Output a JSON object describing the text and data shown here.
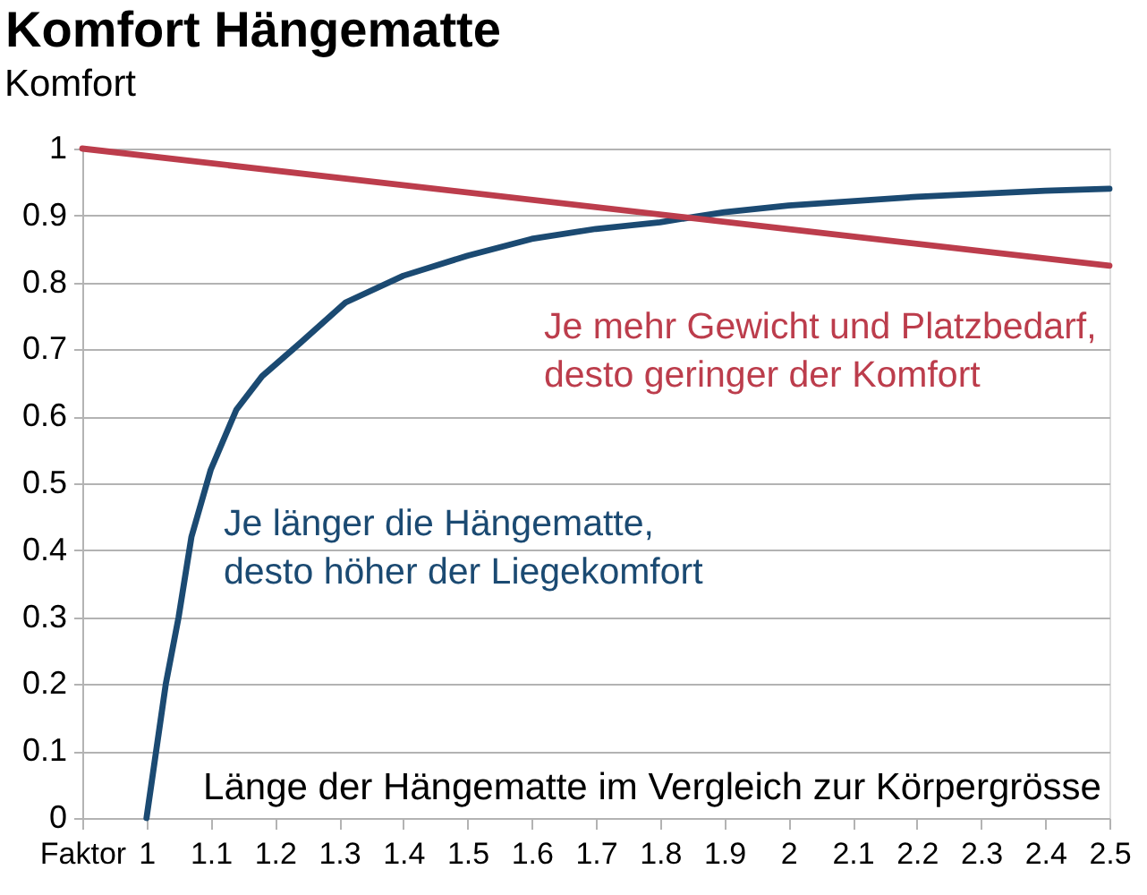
{
  "chart_data": {
    "type": "line",
    "title": "Komfort Hängematte",
    "ylabel": "Komfort",
    "xlabel": "Länge der Hängematte im Vergleich zur Körpergrösse",
    "xlim": [
      0.9,
      2.5
    ],
    "xticks": [
      {
        "value": 0.9,
        "label": "Faktor"
      },
      1,
      1.1,
      1.2,
      1.3,
      1.4,
      1.5,
      1.6,
      1.7,
      1.8,
      1.9,
      2,
      2.1,
      2.2,
      2.3,
      2.4,
      2.5
    ],
    "ylim": [
      0,
      1
    ],
    "yticks": [
      0,
      0.1,
      0.2,
      0.3,
      0.4,
      0.5,
      0.6,
      0.7,
      0.8,
      0.9,
      1
    ],
    "grid": "y",
    "series": [
      {
        "name": "Je länger die Hängematte, desto höher der Liegekomfort",
        "color": "#1b4a72",
        "x": [
          1,
          1.03,
          1.05,
          1.07,
          1.1,
          1.14,
          1.18,
          1.24,
          1.31,
          1.4,
          1.5,
          1.6,
          1.7,
          1.8,
          1.9,
          2,
          2.2,
          2.4,
          2.5
        ],
        "values": [
          0,
          0.2,
          0.3,
          0.42,
          0.52,
          0.61,
          0.66,
          0.71,
          0.77,
          0.81,
          0.84,
          0.865,
          0.88,
          0.89,
          0.905,
          0.915,
          0.928,
          0.937,
          0.94
        ]
      },
      {
        "name": "Je mehr Gewicht und Platzbedarf, desto geringer der Komfort",
        "color": "#bc3d4c",
        "x": [
          0.9,
          2.5
        ],
        "values": [
          1,
          0.825
        ]
      }
    ]
  }
}
